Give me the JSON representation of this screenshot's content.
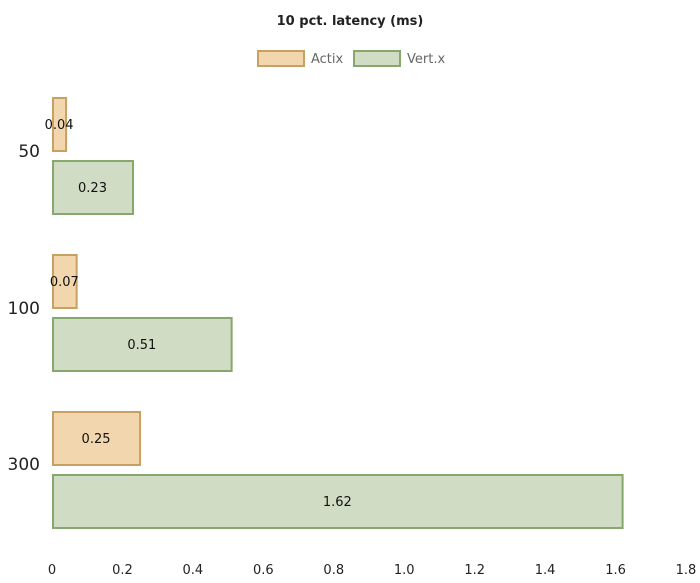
{
  "chart_data": {
    "type": "bar",
    "orientation": "horizontal",
    "title": "10 pct. latency (ms)",
    "categories": [
      "50",
      "100",
      "300"
    ],
    "series": [
      {
        "name": "Actix",
        "values": [
          0.04,
          0.07,
          0.25
        ],
        "fill": "#f2d7ae",
        "stroke": "#c9a064"
      },
      {
        "name": "Vert.x",
        "values": [
          0.23,
          0.51,
          1.62
        ],
        "fill": "#d0dcc4",
        "stroke": "#86a76e"
      }
    ],
    "value_labels": [
      [
        "0.04",
        "0.07",
        "0.25"
      ],
      [
        "0.23",
        "0.51",
        "1.62"
      ]
    ],
    "xlim": [
      0,
      1.8
    ],
    "xticks": [
      "0",
      "0.2",
      "0.4",
      "0.6",
      "0.8",
      "1.0",
      "1.2",
      "1.4",
      "1.6",
      "1.8"
    ],
    "grid": false,
    "legend_position": "top"
  }
}
